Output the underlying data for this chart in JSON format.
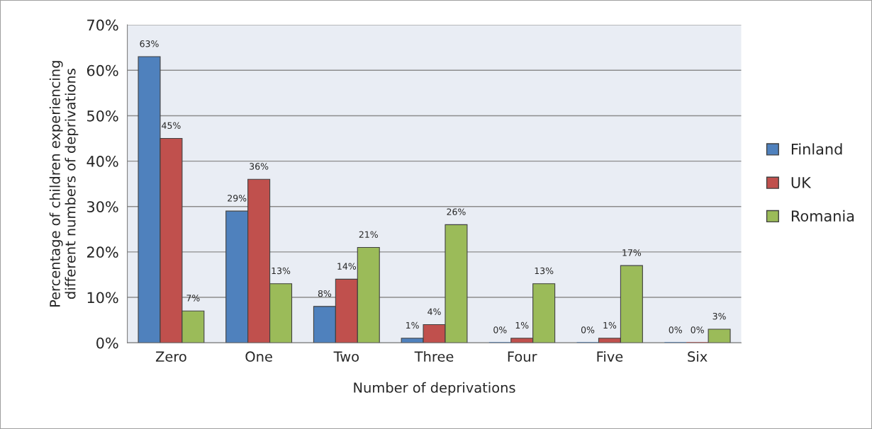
{
  "chart_data": {
    "type": "bar",
    "xlabel": "Number of deprivations",
    "ylabel": "Percentage of children experiencing\ndifferent numbers of deprivations",
    "categories": [
      "Zero",
      "One",
      "Two",
      "Three",
      "Four",
      "Five",
      "Six"
    ],
    "series": [
      {
        "name": "Finland",
        "color": "#4f81bd",
        "values": [
          63,
          29,
          8,
          1,
          0,
          0,
          0
        ],
        "value_labels": [
          "63%",
          "29%",
          "8%",
          "1%",
          "0%",
          "0%",
          "0%"
        ]
      },
      {
        "name": "UK",
        "color": "#c0504d",
        "values": [
          45,
          36,
          14,
          4,
          1,
          1,
          0
        ],
        "value_labels": [
          "45%",
          "36%",
          "14%",
          "4%",
          "1%",
          "1%",
          "0%"
        ]
      },
      {
        "name": "Romania",
        "color": "#9bbb59",
        "values": [
          7,
          13,
          21,
          26,
          13,
          17,
          3
        ],
        "value_labels": [
          "7%",
          "13%",
          "21%",
          "26%",
          "13%",
          "17%",
          "3%"
        ]
      }
    ],
    "ylim": [
      0,
      70
    ],
    "yticks": [
      {
        "value": 0,
        "label": "0%"
      },
      {
        "value": 10,
        "label": "10%"
      },
      {
        "value": 20,
        "label": "20%"
      },
      {
        "value": 30,
        "label": "30%"
      },
      {
        "value": 40,
        "label": "40%"
      },
      {
        "value": 50,
        "label": "50%"
      },
      {
        "value": 60,
        "label": "60%"
      },
      {
        "value": 70,
        "label": "70%"
      }
    ],
    "grid": "y",
    "legend": "right"
  }
}
